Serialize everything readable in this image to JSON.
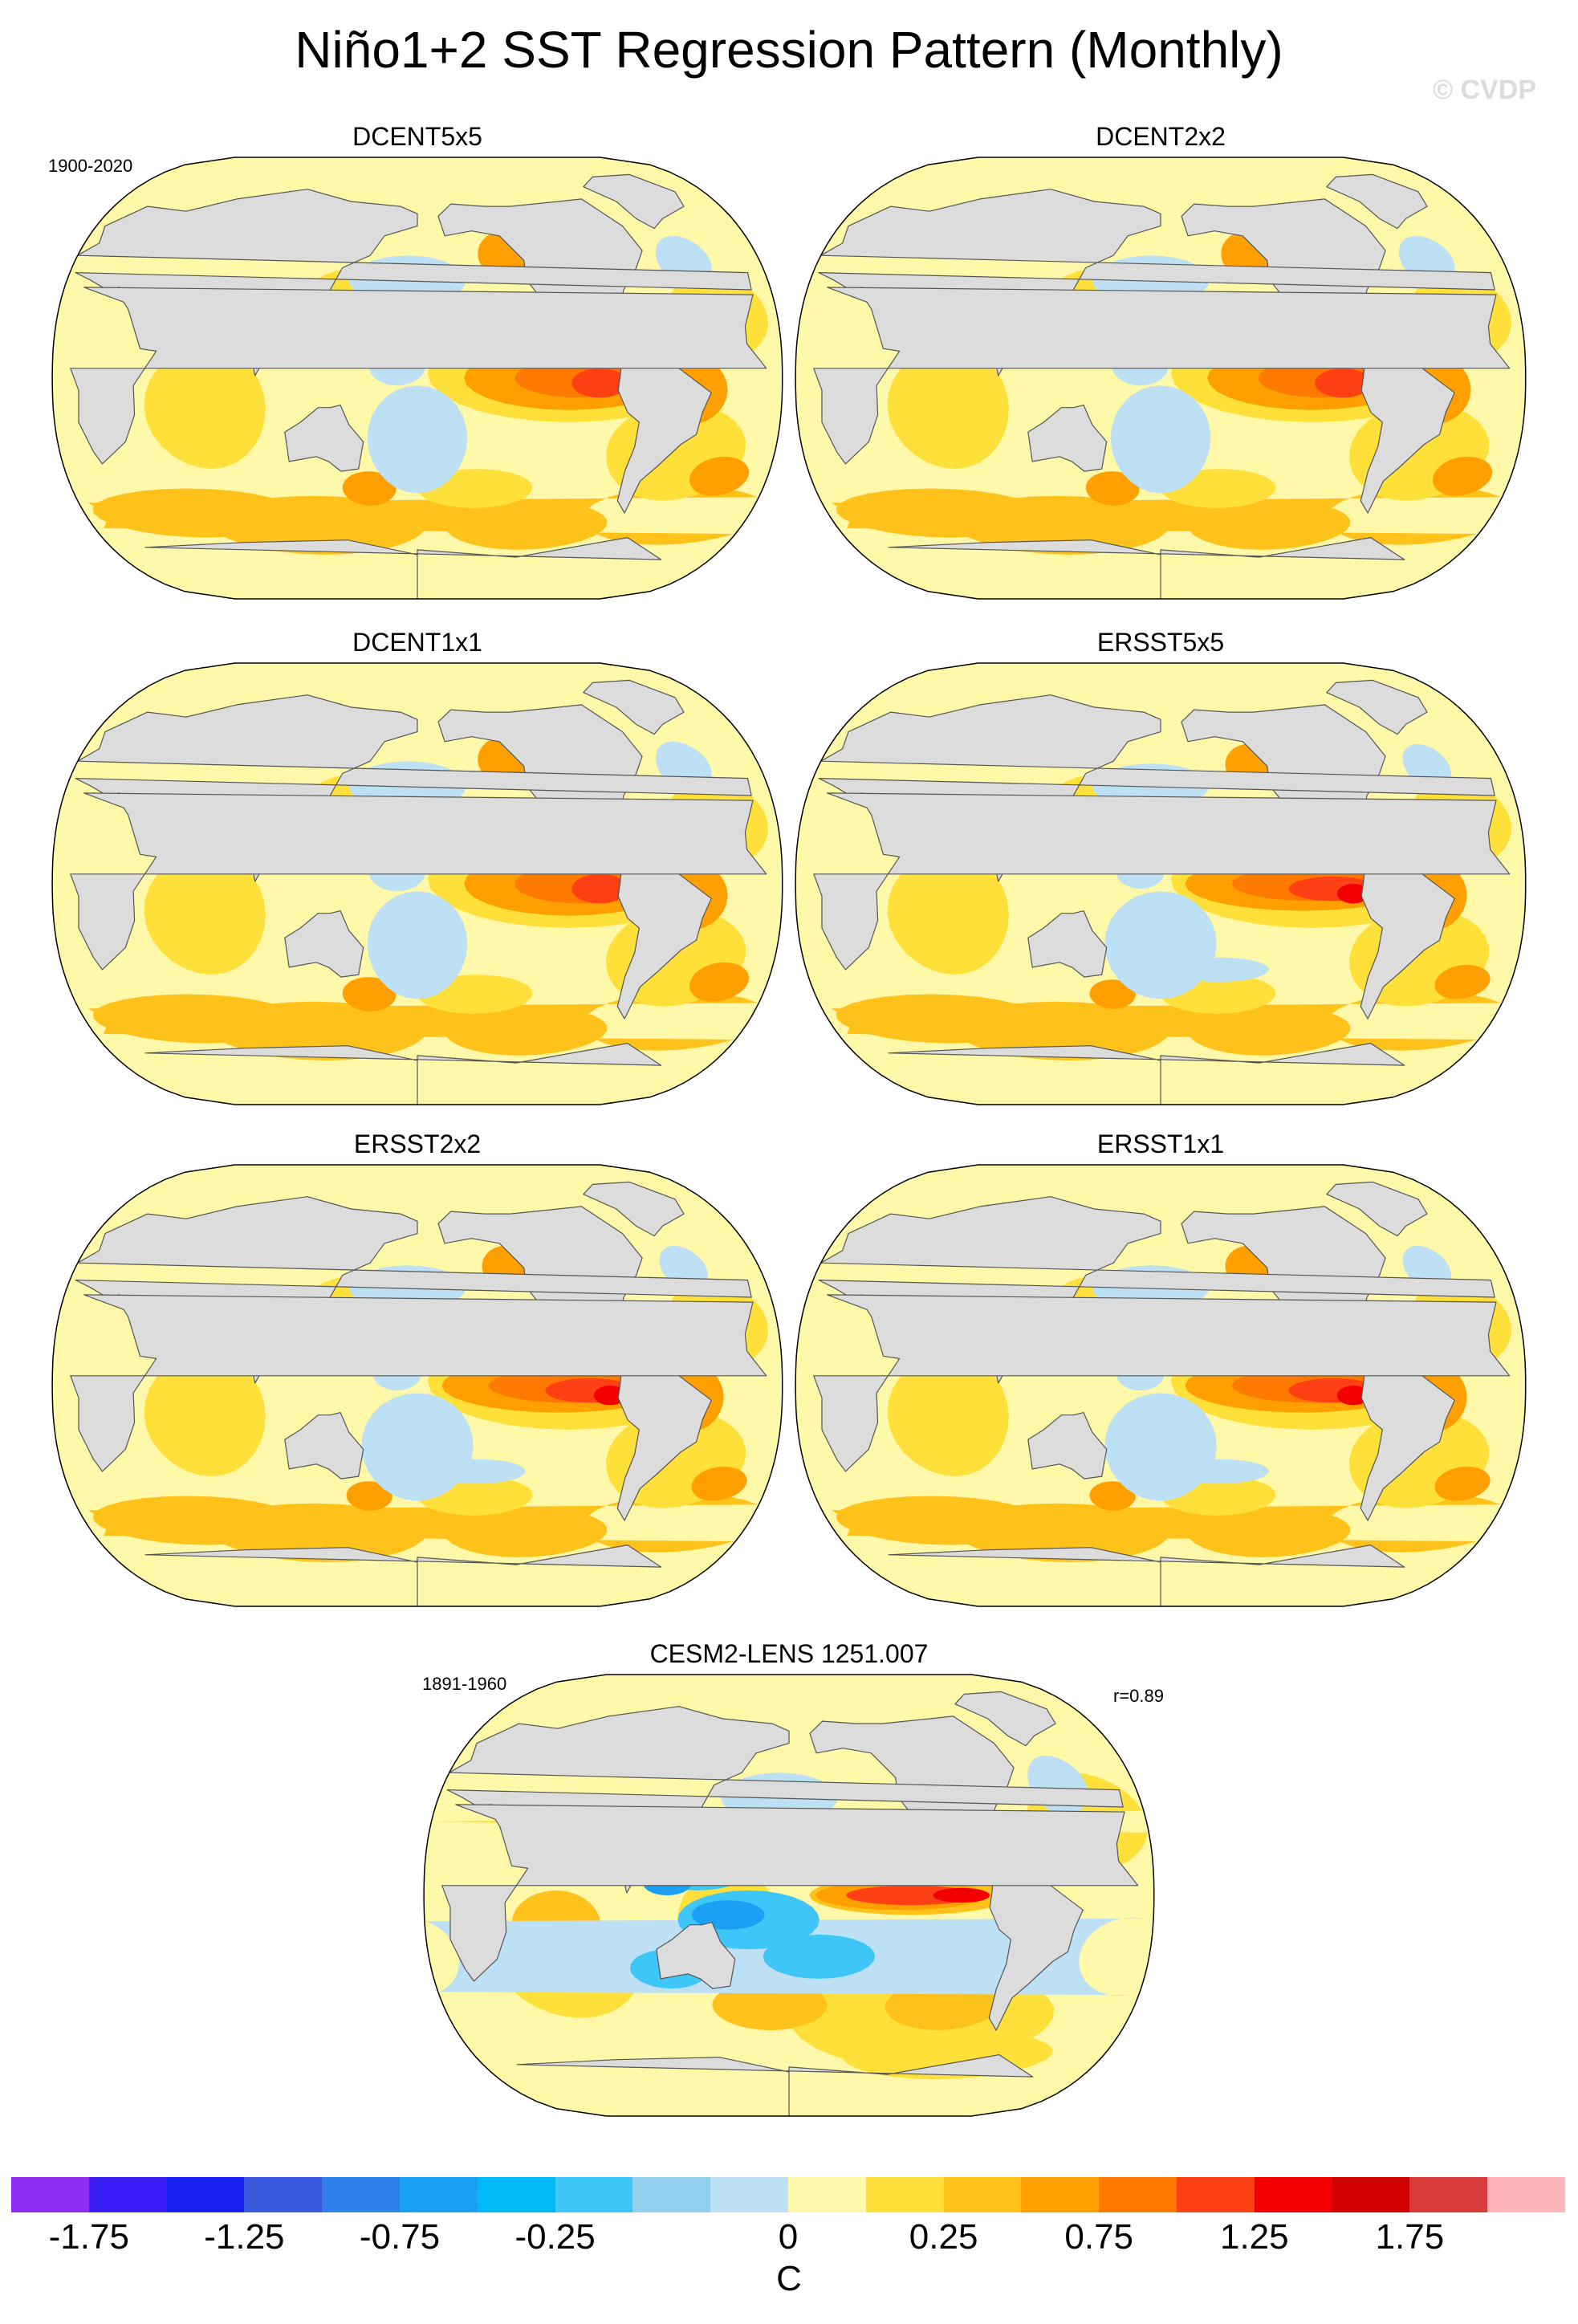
{
  "title": "Niño1+2 SST Regression Pattern (Monthly)",
  "watermark": "© CVDP",
  "panels": [
    {
      "name": "DCENT5x5",
      "period": "1900-2020",
      "style": "coarse"
    },
    {
      "name": "DCENT2x2",
      "style": "coarse"
    },
    {
      "name": "DCENT1x1",
      "style": "coarse"
    },
    {
      "name": "ERSST5x5",
      "style": "obs"
    },
    {
      "name": "ERSST2x2",
      "style": "obs"
    },
    {
      "name": "ERSST1x1",
      "style": "obs"
    },
    {
      "name": "CESM2-LENS 1251.007",
      "period": "1891-1960",
      "corr": "r=0.89",
      "style": "model"
    }
  ],
  "colorbar": {
    "unit": "C",
    "tick_labels": [
      "-1.75",
      "-1.25",
      "-0.75",
      "-0.25",
      "0",
      "0.25",
      "0.75",
      "1.25",
      "1.75"
    ],
    "colors": [
      "#8d2cf2",
      "#3a1ef5",
      "#1520ef",
      "#3b58dd",
      "#2f7fec",
      "#1aa0f5",
      "#00baf5",
      "#3fc6f8",
      "#92cfee",
      "#bde0f5",
      "#fff8a8",
      "#ffe03a",
      "#ffc21a",
      "#ffa000",
      "#ff7a00",
      "#ff4015",
      "#f20000",
      "#d10000",
      "#d83a3a",
      "#ffb4b8"
    ],
    "land_color": "#dcdcdc",
    "boundaries": [
      -2.0,
      -1.75,
      -1.5,
      -1.25,
      -1.0,
      -0.75,
      -0.5,
      -0.25,
      -0.1,
      0,
      0.1,
      0.25,
      0.5,
      0.75,
      1.0,
      1.25,
      1.5,
      1.75,
      2.0
    ]
  }
}
